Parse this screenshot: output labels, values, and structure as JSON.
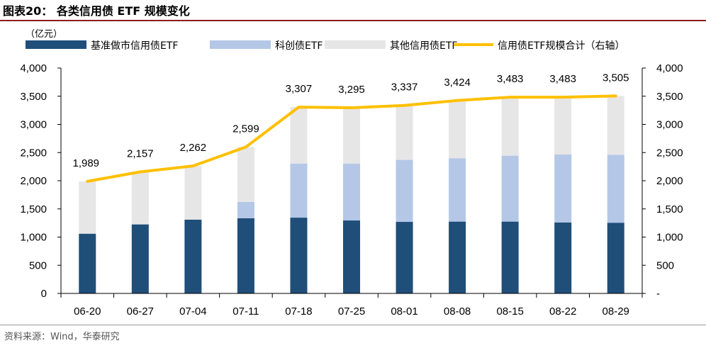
{
  "header": {
    "title": "图表20： 各类信用债 ETF 规模变化"
  },
  "footer": {
    "source": "资料来源：Wind，华泰研究"
  },
  "chart_data": {
    "type": "bar",
    "stacked": true,
    "unit_label": "（亿元）",
    "categories": [
      "06-20",
      "06-27",
      "07-04",
      "07-11",
      "07-18",
      "07-25",
      "08-01",
      "08-08",
      "08-15",
      "08-22",
      "08-29"
    ],
    "series": [
      {
        "name": "基准做市信用债ETF",
        "type": "bar",
        "axis": "left",
        "color": "#1f4e79",
        "values": [
          1060,
          1225,
          1310,
          1335,
          1345,
          1295,
          1270,
          1275,
          1275,
          1260,
          1255
        ]
      },
      {
        "name": "科创债ETF",
        "type": "bar",
        "axis": "left",
        "color": "#b4c7e7",
        "values": [
          0,
          0,
          0,
          290,
          960,
          1010,
          1100,
          1125,
          1170,
          1205,
          1205
        ]
      },
      {
        "name": "其他信用债ETF",
        "type": "bar",
        "axis": "left",
        "color": "#e7e6e6",
        "values": [
          929,
          932,
          952,
          974,
          1002,
          990,
          967,
          1024,
          1038,
          1018,
          1045
        ]
      },
      {
        "name": "信用债ETF规模合计（右轴）",
        "type": "line",
        "axis": "right",
        "color": "#ffc000",
        "values": [
          1989,
          2157,
          2262,
          2599,
          3307,
          3295,
          3337,
          3424,
          3483,
          3483,
          3505
        ],
        "labels": [
          "1,989",
          "2,157",
          "2,262",
          "2,599",
          "3,307",
          "3,295",
          "3,337",
          "3,424",
          "3,483",
          "3,483",
          "3,505"
        ]
      }
    ],
    "y_left": {
      "min": 0,
      "max": 4000,
      "ticks": [
        0,
        500,
        1000,
        1500,
        2000,
        2500,
        3000,
        3500,
        4000
      ],
      "tick_labels": [
        "0",
        "500",
        "1,000",
        "1,500",
        "2,000",
        "2,500",
        "3,000",
        "3,500",
        "4,000"
      ]
    },
    "y_right": {
      "min": 0,
      "max": 4000,
      "ticks": [
        0,
        500,
        1000,
        1500,
        2000,
        2500,
        3000,
        3500,
        4000
      ],
      "tick_labels": [
        "-",
        "500",
        "1,000",
        "1,500",
        "2,000",
        "2,500",
        "3,000",
        "3,500",
        "4,000"
      ]
    },
    "legend_position": "top",
    "grid": false
  }
}
